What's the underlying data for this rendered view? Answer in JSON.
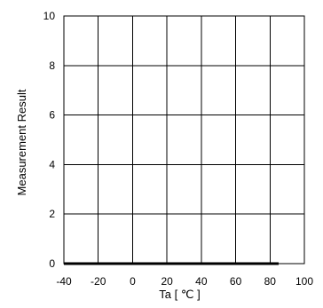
{
  "chart_data": {
    "type": "line",
    "title": "",
    "xlabel": "Ta [ ℃ ]",
    "ylabel": "Measurement Result",
    "xlim": [
      -40,
      100
    ],
    "ylim": [
      0,
      10
    ],
    "x_ticks": [
      -40,
      -20,
      0,
      20,
      40,
      60,
      80,
      100
    ],
    "y_ticks": [
      0,
      2,
      4,
      6,
      8,
      10
    ],
    "grid": true,
    "legend": "none",
    "series": [
      {
        "color": "#000000",
        "x": [
          -40,
          85
        ],
        "y": [
          0,
          0
        ]
      }
    ]
  }
}
